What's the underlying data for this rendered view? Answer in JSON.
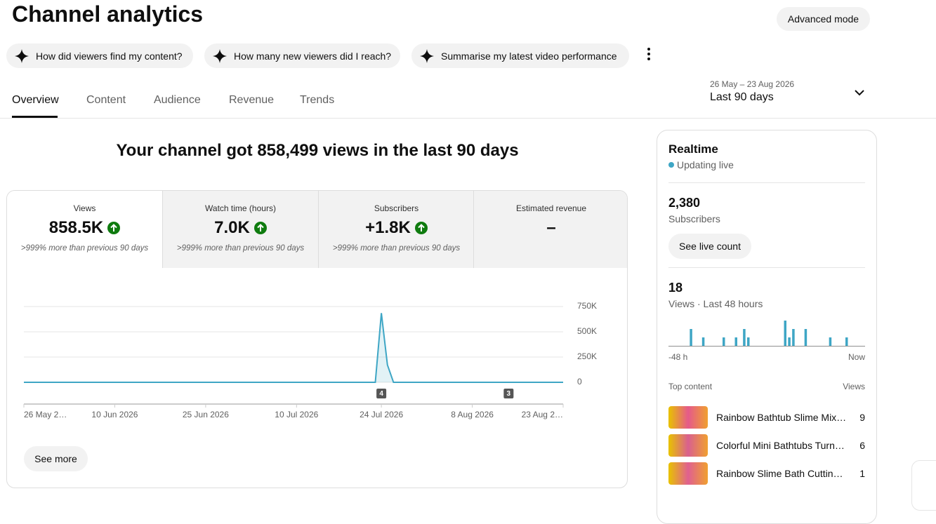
{
  "header": {
    "title": "Channel analytics",
    "advanced_mode": "Advanced mode"
  },
  "suggestions": [
    "How did viewers find my content?",
    "How many new viewers did I reach?",
    "Summarise my latest video performance"
  ],
  "tabs": [
    "Overview",
    "Content",
    "Audience",
    "Revenue",
    "Trends"
  ],
  "date_range": {
    "dates": "26 May – 23 Aug 2026",
    "label": "Last 90 days"
  },
  "headline": "Your channel got 858,499 views in the last 90 days",
  "metrics": [
    {
      "label": "Views",
      "value": "858.5K",
      "note": ">999% more than previous 90 days"
    },
    {
      "label": "Watch time (hours)",
      "value": "7.0K",
      "note": ">999% more than previous 90 days"
    },
    {
      "label": "Subscribers",
      "value": "+1.8K",
      "note": ">999% more than previous 90 days"
    },
    {
      "label": "Estimated revenue",
      "value": "–"
    }
  ],
  "see_more": "See more",
  "realtime": {
    "title": "Realtime",
    "status": "Updating live",
    "subscribers": "2,380",
    "subscribers_label": "Subscribers",
    "live_count_button": "See live count",
    "views": 18,
    "views_label": "Views · Last 48 hours",
    "top_content": {
      "title": "Top content",
      "views_header": "Views",
      "items": [
        {
          "title": "Rainbow Bathtub Slime Mix…",
          "views": 9
        },
        {
          "title": "Colorful Mini Bathtubs Turn…",
          "views": 6
        },
        {
          "title": "Rainbow Slime Bath Cuttin…",
          "views": 1
        }
      ]
    }
  },
  "chart_data": [
    {
      "type": "line",
      "color": "#3ea6c5",
      "x": [
        "2026-05-26",
        "2026-05-27",
        "2026-05-28",
        "2026-05-29",
        "2026-05-30",
        "2026-05-31",
        "2026-06-01",
        "2026-06-02",
        "2026-06-03",
        "2026-06-04",
        "2026-06-05",
        "2026-06-06",
        "2026-06-07",
        "2026-06-08",
        "2026-06-09",
        "2026-06-10",
        "2026-06-11",
        "2026-06-12",
        "2026-06-13",
        "2026-06-14",
        "2026-06-15",
        "2026-06-16",
        "2026-06-17",
        "2026-06-18",
        "2026-06-19",
        "2026-06-20",
        "2026-06-21",
        "2026-06-22",
        "2026-06-23",
        "2026-06-24",
        "2026-06-25",
        "2026-06-26",
        "2026-06-27",
        "2026-06-28",
        "2026-06-29",
        "2026-06-30",
        "2026-07-01",
        "2026-07-02",
        "2026-07-03",
        "2026-07-04",
        "2026-07-05",
        "2026-07-06",
        "2026-07-07",
        "2026-07-08",
        "2026-07-09",
        "2026-07-10",
        "2026-07-11",
        "2026-07-12",
        "2026-07-13",
        "2026-07-14",
        "2026-07-15",
        "2026-07-16",
        "2026-07-17",
        "2026-07-18",
        "2026-07-19",
        "2026-07-20",
        "2026-07-21",
        "2026-07-22",
        "2026-07-23",
        "2026-07-24",
        "2026-07-25",
        "2026-07-26",
        "2026-07-27",
        "2026-07-28",
        "2026-07-29",
        "2026-07-30",
        "2026-07-31",
        "2026-08-01",
        "2026-08-02",
        "2026-08-03",
        "2026-08-04",
        "2026-08-05",
        "2026-08-06",
        "2026-08-07",
        "2026-08-08",
        "2026-08-09",
        "2026-08-10",
        "2026-08-11",
        "2026-08-12",
        "2026-08-13",
        "2026-08-14",
        "2026-08-15",
        "2026-08-16",
        "2026-08-17",
        "2026-08-18",
        "2026-08-19",
        "2026-08-20",
        "2026-08-21",
        "2026-08-22",
        "2026-08-23"
      ],
      "values": [
        0,
        0,
        0,
        0,
        0,
        0,
        0,
        0,
        0,
        0,
        0,
        0,
        0,
        0,
        0,
        0,
        0,
        0,
        0,
        0,
        0,
        0,
        0,
        0,
        0,
        0,
        0,
        0,
        0,
        0,
        0,
        0,
        0,
        0,
        0,
        0,
        0,
        0,
        0,
        0,
        0,
        0,
        0,
        0,
        0,
        0,
        0,
        0,
        0,
        0,
        0,
        0,
        0,
        0,
        0,
        0,
        0,
        0,
        0,
        685000,
        172500,
        400,
        200,
        0,
        0,
        0,
        0,
        0,
        0,
        0,
        0,
        0,
        0,
        0,
        0,
        0,
        0,
        0,
        0,
        0,
        0,
        0,
        0,
        0,
        0,
        0,
        0,
        0,
        0,
        0
      ],
      "xlim": [
        "2026-05-26",
        "2026-08-23"
      ],
      "xticks": [
        {
          "value": "2026-05-26",
          "label": "26 May 2…"
        },
        {
          "value": "2026-06-10",
          "label": "10 Jun 2026"
        },
        {
          "value": "2026-06-25",
          "label": "25 Jun 2026"
        },
        {
          "value": "2026-07-10",
          "label": "10 Jul 2026"
        },
        {
          "value": "2026-07-24",
          "label": "24 Jul 2026"
        },
        {
          "value": "2026-08-08",
          "label": "8 Aug 2026"
        },
        {
          "value": "2026-08-23",
          "label": "23 Aug 2…"
        }
      ],
      "ylim": [
        0,
        750000
      ],
      "yticks": [
        0,
        {
          "value": 250000,
          "label": "250K"
        },
        {
          "value": 500000,
          "label": "500K"
        },
        {
          "value": 750000,
          "label": "750K"
        }
      ],
      "grid": true,
      "annotations": [
        {
          "x": "2026-07-24",
          "count": 4
        },
        {
          "x": "2026-08-14",
          "count": 3
        }
      ]
    },
    {
      "type": "bar",
      "color": "#3ea6c5",
      "categories": [
        "-48 h",
        null,
        null,
        null,
        null,
        null,
        null,
        null,
        null,
        null,
        null,
        null,
        null,
        null,
        null,
        null,
        null,
        null,
        null,
        null,
        null,
        null,
        null,
        null,
        null,
        null,
        null,
        null,
        null,
        null,
        null,
        null,
        null,
        null,
        null,
        null,
        null,
        null,
        null,
        null,
        null,
        null,
        null,
        null,
        null,
        null,
        null,
        "Now"
      ],
      "values": [
        0,
        0,
        0,
        0,
        0,
        2,
        0,
        0,
        1,
        0,
        0,
        0,
        0,
        1,
        0,
        0,
        1,
        0,
        2,
        1,
        0,
        0,
        0,
        0,
        0,
        0,
        0,
        0,
        3,
        1,
        2,
        0,
        0,
        2,
        0,
        0,
        0,
        0,
        0,
        1,
        0,
        0,
        0,
        1,
        0,
        0,
        0,
        0
      ],
      "ylim": [
        0,
        3
      ]
    }
  ]
}
